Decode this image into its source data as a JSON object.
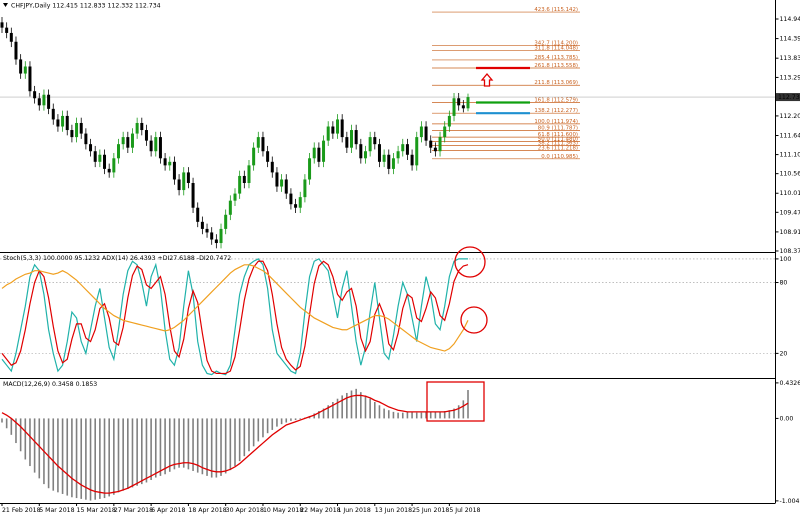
{
  "chart_data": [
    {
      "type": "candlestick",
      "symbol": "CHFJPY,Daily",
      "categories": [
        "21 Feb 2018",
        null,
        null,
        null,
        null,
        null,
        null,
        null,
        "5 Mar 2018",
        null,
        null,
        null,
        null,
        null,
        null,
        null,
        "15 Mar 2018",
        null,
        null,
        null,
        null,
        null,
        null,
        null,
        "27 Mar 2018",
        null,
        null,
        null,
        null,
        null,
        null,
        null,
        "6 Apr 2018",
        null,
        null,
        null,
        null,
        null,
        null,
        null,
        "18 Apr 2018",
        null,
        null,
        null,
        null,
        null,
        null,
        null,
        "30 Apr 2018",
        null,
        null,
        null,
        null,
        null,
        null,
        null,
        "10 May 2018",
        null,
        null,
        null,
        null,
        null,
        null,
        null,
        "22 May 2018",
        null,
        null,
        null,
        null,
        null,
        null,
        null,
        "1 Jun 2018",
        null,
        null,
        null,
        null,
        null,
        null,
        null,
        "13 Jun 2018",
        null,
        null,
        null,
        null,
        null,
        null,
        null,
        "25 Jun 2018",
        null,
        null,
        null,
        null,
        null,
        null,
        null,
        "5 Jul 2018",
        null,
        null,
        null,
        null
      ],
      "open": [
        114.85,
        114.7,
        114.55,
        114.3,
        113.8,
        113.4,
        113.6,
        112.9,
        112.7,
        112.5,
        112.8,
        112.4,
        112.1,
        111.9,
        112.2,
        111.8,
        111.6,
        112,
        111.7,
        111.4,
        111.2,
        110.9,
        111.1,
        110.7,
        110.6,
        111,
        111.4,
        111.6,
        111.3,
        111.7,
        112,
        111.8,
        111.5,
        111.2,
        111.6,
        111,
        110.8,
        110.9,
        110.4,
        110.1,
        110.6,
        110.3,
        109.6,
        109.2,
        109,
        108.9,
        108.7,
        108.6,
        109,
        109.4,
        109.8,
        110,
        110.5,
        110.3,
        110.8,
        111.3,
        111.6,
        111.2,
        110.9,
        110.6,
        110.2,
        110.4,
        110,
        109.7,
        109.6,
        109.9,
        110.4,
        111,
        111.3,
        110.9,
        111.5,
        111.9,
        111.7,
        112.1,
        111.6,
        111.3,
        111.8,
        111.4,
        111,
        111.2,
        111.6,
        111.4,
        110.9,
        111.1,
        110.7,
        111,
        111.2,
        111.4,
        111.1,
        110.8,
        111.6,
        111.9,
        111.5,
        111.3,
        111.2,
        111.6,
        111.9,
        112.2,
        112.7,
        112.5,
        112.415
      ],
      "high": [
        115,
        114.85,
        114.7,
        114.45,
        113.95,
        113.75,
        113.75,
        113.05,
        112.85,
        112.95,
        112.95,
        112.55,
        112.25,
        112.35,
        112.35,
        111.95,
        112.15,
        112.15,
        111.85,
        111.55,
        111.35,
        111.25,
        111.25,
        110.85,
        111.15,
        111.55,
        111.75,
        111.75,
        111.85,
        112.15,
        112.15,
        111.95,
        111.65,
        111.75,
        111.75,
        111.15,
        111.05,
        111.05,
        110.55,
        110.75,
        110.75,
        110.45,
        109.75,
        109.35,
        109.15,
        109.05,
        108.85,
        109.15,
        109.55,
        109.95,
        110.15,
        110.65,
        110.65,
        110.95,
        111.45,
        111.75,
        111.75,
        111.35,
        111.05,
        110.75,
        110.55,
        110.55,
        110.15,
        109.85,
        110.05,
        110.55,
        111.15,
        111.45,
        111.45,
        111.65,
        112.05,
        112.05,
        112.25,
        112.25,
        111.75,
        111.95,
        111.95,
        111.55,
        111.35,
        111.75,
        111.75,
        111.55,
        111.25,
        111.25,
        111.15,
        111.35,
        111.55,
        111.55,
        111.25,
        111.75,
        112.05,
        112.05,
        111.65,
        111.45,
        111.75,
        112.05,
        112.35,
        112.85,
        112.85,
        112.65,
        112.833
      ],
      "low": [
        114.55,
        114.4,
        114.15,
        113.65,
        113.25,
        113.25,
        112.75,
        112.55,
        112.35,
        112.35,
        112.25,
        111.95,
        111.75,
        111.75,
        111.65,
        111.45,
        111.45,
        111.55,
        111.25,
        111.05,
        110.75,
        110.75,
        110.55,
        110.45,
        110.45,
        110.85,
        111.25,
        111.15,
        111.15,
        111.55,
        111.65,
        111.35,
        111.05,
        111.05,
        110.85,
        110.65,
        110.65,
        110.25,
        109.95,
        109.95,
        110.15,
        109.45,
        109.05,
        108.85,
        108.75,
        108.55,
        108.45,
        108.45,
        108.85,
        109.25,
        109.65,
        109.85,
        110.15,
        110.15,
        110.65,
        111.15,
        111.05,
        110.75,
        110.45,
        110.05,
        110.05,
        109.85,
        109.55,
        109.45,
        109.45,
        109.75,
        110.25,
        110.85,
        110.75,
        110.75,
        111.35,
        111.55,
        111.55,
        111.45,
        111.15,
        111.15,
        111.25,
        110.85,
        110.85,
        111.05,
        111.25,
        110.75,
        110.75,
        110.55,
        110.55,
        110.85,
        111.05,
        110.95,
        110.65,
        110.65,
        111.45,
        111.35,
        111.15,
        111.05,
        111.05,
        111.45,
        111.75,
        112.05,
        112.35,
        112.3,
        112.332
      ],
      "close": [
        114.7,
        114.55,
        114.3,
        113.8,
        113.4,
        113.6,
        112.9,
        112.7,
        112.5,
        112.8,
        112.4,
        112.1,
        111.9,
        112.2,
        111.8,
        111.6,
        112,
        111.7,
        111.4,
        111.2,
        110.9,
        111.1,
        110.7,
        110.6,
        111,
        111.4,
        111.6,
        111.3,
        111.7,
        112,
        111.8,
        111.5,
        111.2,
        111.6,
        111,
        110.8,
        110.9,
        110.4,
        110.1,
        110.6,
        110.3,
        109.6,
        109.2,
        109,
        108.9,
        108.7,
        108.6,
        109,
        109.4,
        109.8,
        110,
        110.5,
        110.3,
        110.8,
        111.3,
        111.6,
        111.2,
        110.9,
        110.6,
        110.2,
        110.4,
        110,
        109.7,
        109.6,
        109.9,
        110.4,
        111,
        111.3,
        110.9,
        111.5,
        111.9,
        111.7,
        112.1,
        111.6,
        111.3,
        111.8,
        111.4,
        111,
        111.2,
        111.6,
        111.4,
        110.9,
        111.1,
        110.7,
        111,
        111.2,
        111.4,
        111.1,
        110.8,
        111.6,
        111.9,
        111.5,
        111.3,
        111.2,
        111.6,
        111.9,
        112.2,
        112.7,
        112.5,
        112.415,
        112.734
      ],
      "up_color": "#1a9a1a",
      "down_color": "#000000",
      "ylim": [
        108.346,
        115.483
      ],
      "yticks": [
        114.945,
        {
          "value": 114.39,
          "label": "114.390"
        },
        113.835,
        {
          "value": 113.29,
          "label": "113.290"
        },
        {
          "value": 112.2,
          "label": "112.200"
        },
        111.645,
        111.105,
        110.565,
        {
          "value": 110.01,
          "label": "110.010"
        },
        {
          "value": 109.47,
          "label": "109.470"
        },
        108.915,
        108.375
      ],
      "fib_color": "#c8601e",
      "fib_levels": [
        {
          "value": 115.142,
          "label": "423.6 (115.142)"
        },
        {
          "value": 114.2,
          "label": "342.7 (114.200)"
        },
        {
          "value": 114.048,
          "label": "311.8 (114.048)"
        },
        {
          "value": 113.785,
          "label": "285.4 (113.785)"
        },
        {
          "value": 113.558,
          "label": "261.8 (113.558)"
        },
        {
          "value": 113.069,
          "label": "211.8 (113.069)"
        },
        {
          "value": 112.579,
          "label": "161.8 (112.579)"
        },
        {
          "value": 112.277,
          "label": "138.2 (112.277)"
        },
        {
          "value": 111.974,
          "label": "100.0 (111.974)"
        },
        {
          "value": 111.787,
          "label": "80.9 (111.787)"
        },
        {
          "value": 111.6,
          "label": "61.8 (111.600)"
        },
        {
          "value": 111.48,
          "label": "50.0 (111.480)"
        },
        {
          "value": 111.363,
          "label": "38.2 (111.363)"
        },
        {
          "value": 111.218,
          "label": "23.6 (111.218)"
        },
        {
          "value": 110.985,
          "label": "0.0 (110.985)"
        }
      ],
      "hlines": [
        {
          "value": 113.558,
          "color": "#e00000"
        },
        {
          "value": 112.579,
          "color": "#10a010"
        },
        {
          "value": 112.277,
          "color": "#1e90d0"
        }
      ]
    },
    {
      "type": "line",
      "label": "Stoch(5,3,3) 100.0000 95.1232 ADX(14) 26.4393 +DI27.6188 -DI20.7472",
      "series": [
        {
          "color": "#20b2aa",
          "values": [
            15,
            10,
            5,
            20,
            40,
            60,
            85,
            95,
            90,
            70,
            40,
            20,
            5,
            10,
            30,
            55,
            50,
            30,
            20,
            40,
            60,
            75,
            50,
            25,
            15,
            40,
            70,
            90,
            98,
            95,
            80,
            60,
            85,
            95,
            75,
            40,
            15,
            10,
            25,
            60,
            90,
            70,
            30,
            10,
            3,
            2,
            5,
            3,
            2,
            10,
            40,
            70,
            85,
            95,
            98,
            100,
            95,
            75,
            40,
            20,
            15,
            10,
            5,
            3,
            20,
            55,
            85,
            98,
            100,
            95,
            90,
            70,
            50,
            75,
            90,
            60,
            30,
            10,
            25,
            55,
            80,
            50,
            20,
            15,
            35,
            60,
            80,
            70,
            50,
            30,
            60,
            85,
            70,
            45,
            40,
            60,
            85,
            98,
            100,
            100,
            100
          ]
        },
        {
          "color": "#e00000",
          "values": [
            20,
            15,
            10,
            12,
            22,
            40,
            62,
            80,
            90,
            85,
            67,
            43,
            22,
            12,
            15,
            32,
            45,
            45,
            33,
            30,
            40,
            58,
            62,
            50,
            30,
            27,
            42,
            67,
            86,
            94,
            91,
            78,
            75,
            80,
            85,
            70,
            43,
            22,
            17,
            32,
            58,
            73,
            63,
            37,
            14,
            5,
            3,
            3,
            3,
            5,
            17,
            40,
            65,
            83,
            93,
            98,
            98,
            90,
            70,
            45,
            25,
            15,
            10,
            6,
            9,
            26,
            53,
            79,
            94,
            98,
            95,
            85,
            70,
            65,
            72,
            75,
            60,
            33,
            22,
            30,
            53,
            62,
            52,
            28,
            23,
            37,
            58,
            70,
            67,
            50,
            47,
            58,
            72,
            67,
            52,
            48,
            62,
            81,
            90,
            94,
            95.1232
          ]
        },
        {
          "color": "#f0a020",
          "values": [
            75,
            78,
            80,
            83,
            85,
            87,
            88,
            90,
            90,
            89,
            88,
            87,
            88,
            90,
            88,
            85,
            82,
            78,
            74,
            70,
            66,
            62,
            58,
            55,
            52,
            50,
            48,
            47,
            46,
            45,
            44,
            43,
            42,
            41,
            40,
            39,
            40,
            42,
            45,
            48,
            52,
            56,
            60,
            64,
            68,
            72,
            76,
            80,
            84,
            88,
            91,
            93,
            95,
            95,
            94,
            92,
            90,
            87,
            83,
            79,
            75,
            71,
            67,
            63,
            59,
            56,
            53,
            50,
            48,
            46,
            44,
            42,
            41,
            40,
            40,
            42,
            44,
            46,
            48,
            50,
            52,
            52,
            51,
            49,
            46,
            43,
            40,
            37,
            34,
            31,
            29,
            27,
            25,
            24,
            23,
            22,
            24,
            28,
            34,
            40,
            48
          ]
        }
      ],
      "ylim": [
        0,
        105
      ],
      "yticks": [
        100,
        80,
        20
      ],
      "grid": true
    },
    {
      "type": "combo",
      "label": "MACD(12,26,9) 0.3458 0.1853",
      "series": [
        {
          "type": "bar",
          "color": "#808080",
          "values": [
            -0.05,
            -0.12,
            -0.2,
            -0.3,
            -0.4,
            -0.5,
            -0.58,
            -0.66,
            -0.73,
            -0.8,
            -0.85,
            -0.88,
            -0.9,
            -0.92,
            -0.94,
            -0.96,
            -0.97,
            -0.98,
            -0.99,
            -1,
            -0.99,
            -0.98,
            -0.97,
            -0.95,
            -0.93,
            -0.9,
            -0.88,
            -0.86,
            -0.84,
            -0.82,
            -0.8,
            -0.78,
            -0.75,
            -0.72,
            -0.7,
            -0.68,
            -0.65,
            -0.62,
            -0.6,
            -0.6,
            -0.62,
            -0.64,
            -0.66,
            -0.68,
            -0.7,
            -0.72,
            -0.72,
            -0.7,
            -0.67,
            -0.63,
            -0.58,
            -0.52,
            -0.46,
            -0.4,
            -0.34,
            -0.28,
            -0.23,
            -0.18,
            -0.14,
            -0.1,
            -0.07,
            -0.05,
            -0.03,
            -0.02,
            -0.01,
            0.01,
            0.03,
            0.06,
            0.09,
            0.12,
            0.16,
            0.2,
            0.24,
            0.28,
            0.31,
            0.34,
            0.36,
            0.32,
            0.28,
            0.24,
            0.2,
            0.16,
            0.12,
            0.1,
            0.08,
            0.07,
            0.07,
            0.08,
            0.08,
            0.07,
            0.07,
            0.08,
            0.08,
            0.08,
            0.08,
            0.09,
            0.1,
            0.12,
            0.16,
            0.22,
            0.3458
          ]
        },
        {
          "type": "line",
          "color": "#e00000",
          "values": [
            0.07,
            0.04,
            0,
            -0.05,
            -0.1,
            -0.16,
            -0.22,
            -0.28,
            -0.34,
            -0.4,
            -0.46,
            -0.52,
            -0.58,
            -0.63,
            -0.68,
            -0.73,
            -0.77,
            -0.81,
            -0.84,
            -0.87,
            -0.89,
            -0.9,
            -0.91,
            -0.91,
            -0.9,
            -0.89,
            -0.87,
            -0.85,
            -0.82,
            -0.79,
            -0.76,
            -0.73,
            -0.7,
            -0.67,
            -0.64,
            -0.61,
            -0.58,
            -0.56,
            -0.55,
            -0.54,
            -0.54,
            -0.55,
            -0.57,
            -0.6,
            -0.62,
            -0.64,
            -0.65,
            -0.65,
            -0.64,
            -0.62,
            -0.59,
            -0.55,
            -0.5,
            -0.45,
            -0.4,
            -0.35,
            -0.3,
            -0.25,
            -0.2,
            -0.16,
            -0.12,
            -0.08,
            -0.06,
            -0.04,
            -0.02,
            0,
            0.02,
            0.04,
            0.07,
            0.1,
            0.13,
            0.16,
            0.19,
            0.22,
            0.25,
            0.27,
            0.28,
            0.28,
            0.27,
            0.25,
            0.22,
            0.2,
            0.17,
            0.14,
            0.12,
            0.1,
            0.09,
            0.08,
            0.08,
            0.08,
            0.08,
            0.08,
            0.08,
            0.08,
            0.08,
            0.08,
            0.09,
            0.1,
            0.12,
            0.15,
            0.1853
          ]
        }
      ],
      "ylim": [
        -1.03,
        0.48
      ],
      "yticks": [
        0.4326,
        {
          "value": 0,
          "label": "0.00"
        },
        -1.0042
      ]
    }
  ]
}
